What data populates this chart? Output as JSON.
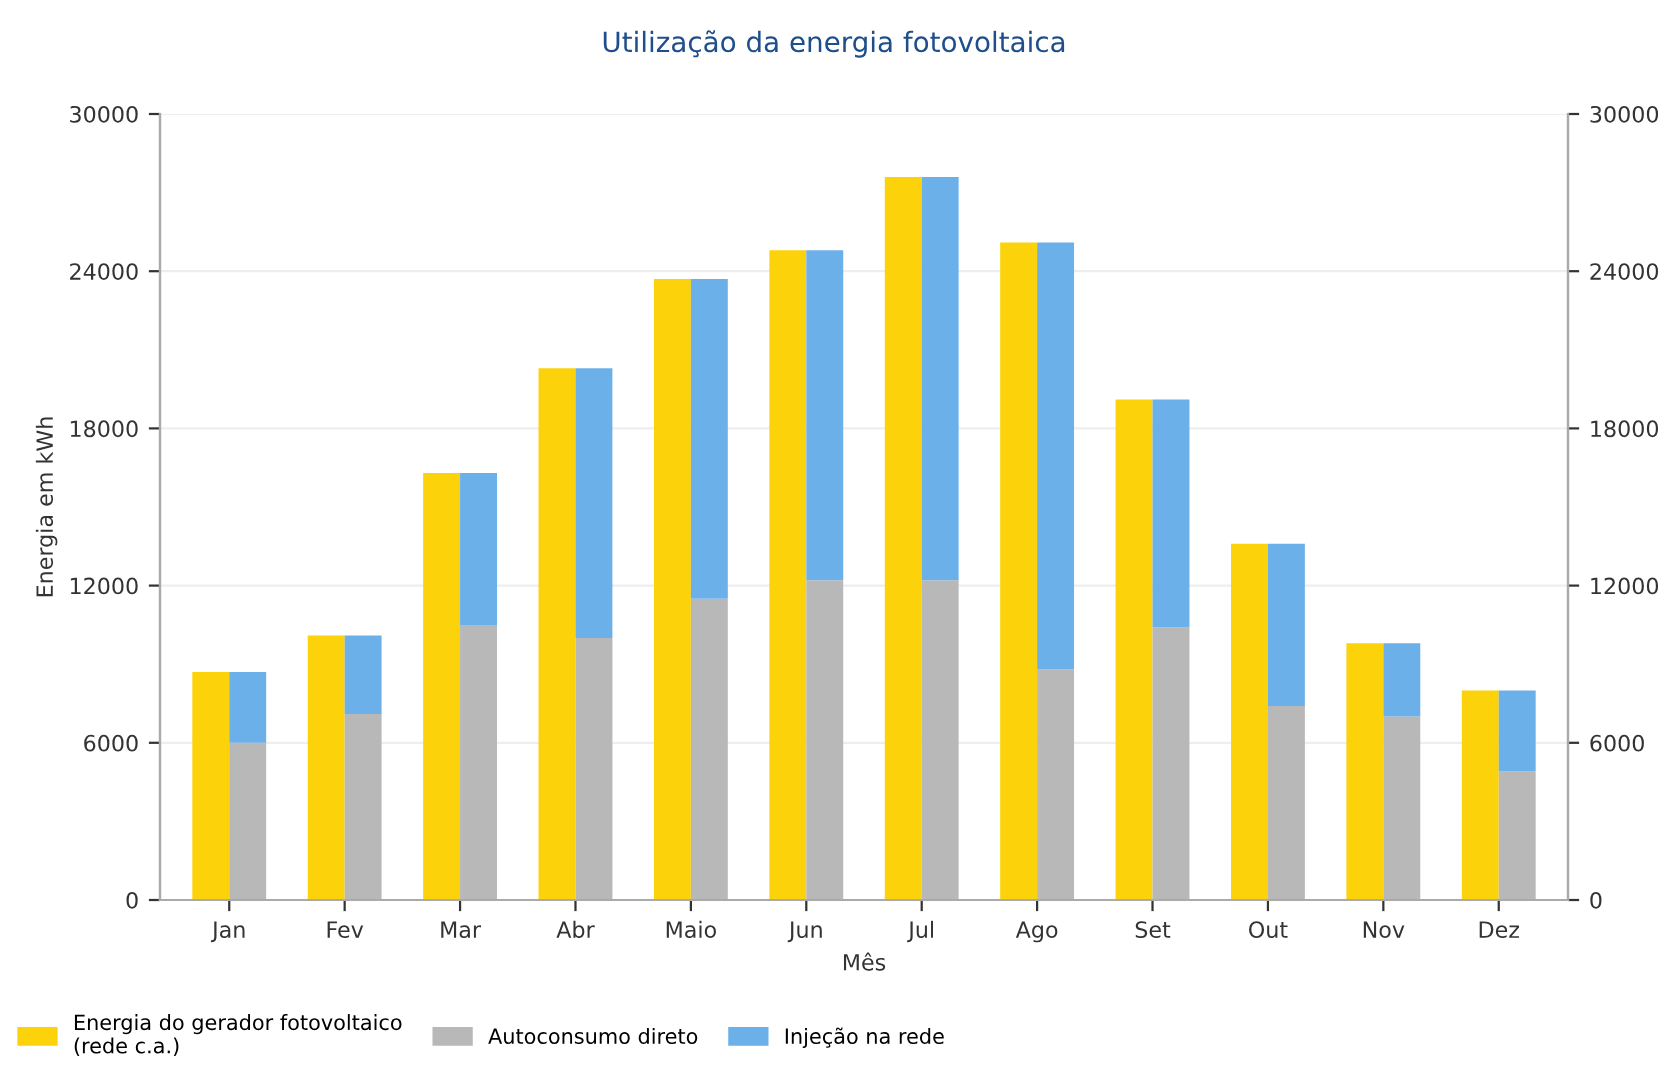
{
  "chart_data": {
    "type": "bar",
    "title": "Utilização da energia fotovoltaica",
    "xlabel": "Mês",
    "ylabel": "Energia em kWh",
    "categories": [
      "Jan",
      "Fev",
      "Mar",
      "Abr",
      "Maio",
      "Jun",
      "Jul",
      "Ago",
      "Set",
      "Out",
      "Nov",
      "Dez"
    ],
    "series": [
      {
        "name": "Energia do gerador fotovoltaico\n(rede c.a.)",
        "color": "#fcd20a",
        "values": [
          8700,
          10100,
          16300,
          20300,
          23700,
          24800,
          27600,
          25100,
          19100,
          13600,
          9800,
          8000
        ]
      },
      {
        "name": "Autoconsumo direto",
        "color": "#b8b8b8",
        "values": [
          6000,
          7100,
          10500,
          10000,
          11500,
          12200,
          12200,
          8800,
          10400,
          7400,
          7000,
          4900
        ],
        "base": [
          0,
          0,
          0,
          0,
          0,
          0,
          0,
          0,
          0,
          0,
          0,
          0
        ]
      },
      {
        "name": "Injeção na rede",
        "color": "#6cb0ea",
        "values": [
          2700,
          3000,
          5800,
          10300,
          12200,
          12600,
          15400,
          16300,
          8700,
          6200,
          2800,
          3100
        ],
        "base": [
          6000,
          7100,
          10500,
          10000,
          11500,
          12200,
          12200,
          8800,
          10400,
          7400,
          7000,
          4900
        ]
      }
    ],
    "ylim": [
      0,
      30000
    ],
    "yticks": [
      0,
      6000,
      12000,
      18000,
      24000,
      30000
    ],
    "y2lim": [
      0,
      30000
    ],
    "y2ticks": [
      0,
      6000,
      12000,
      18000,
      24000,
      30000
    ],
    "grid": "y",
    "legend": "bottom left"
  }
}
